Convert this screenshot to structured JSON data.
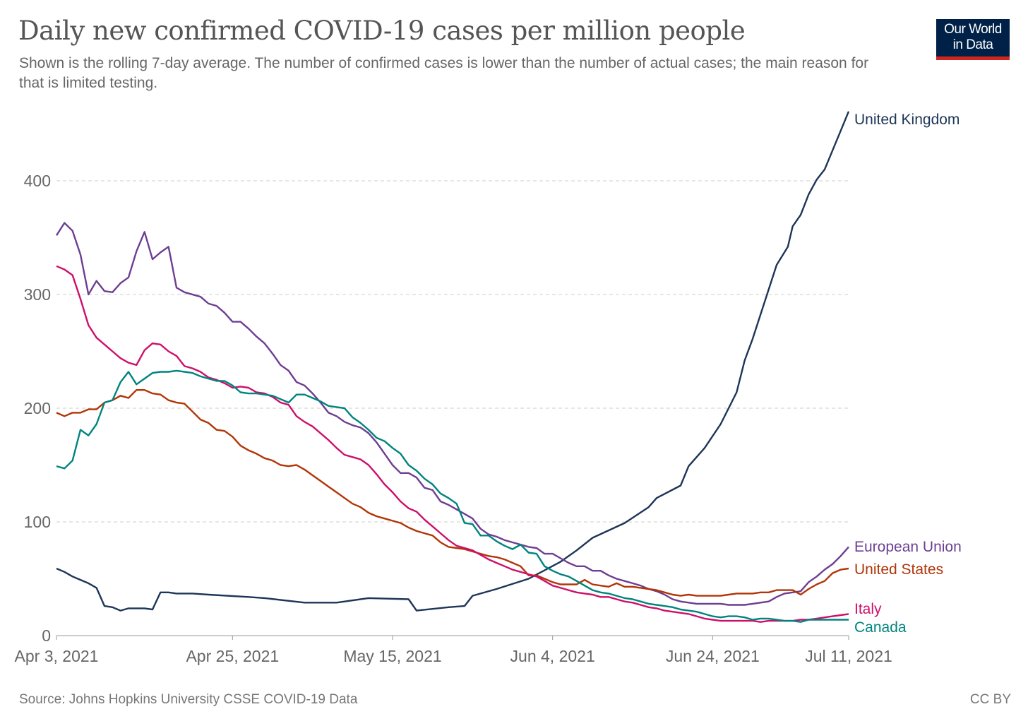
{
  "header": {
    "title": "Daily new confirmed COVID-19 cases per million people",
    "subtitle": "Shown is the rolling 7-day average. The number of confirmed cases is lower than the number of actual cases; the main reason for that is limited testing.",
    "logo_line1": "Our World",
    "logo_line2": "in Data"
  },
  "footer": {
    "source": "Source: Johns Hopkins University CSSE COVID-19 Data",
    "license": "CC BY"
  },
  "chart_data": {
    "type": "line",
    "title": "Daily new confirmed COVID-19 cases per million people",
    "xlabel": "",
    "ylabel": "",
    "x_unit": "days since Apr 3, 2021",
    "xlim": [
      0,
      99
    ],
    "ylim": [
      0,
      460
    ],
    "yticks": [
      0,
      100,
      200,
      300,
      400
    ],
    "xticks": [
      {
        "day": 0,
        "label": "Apr 3, 2021"
      },
      {
        "day": 22,
        "label": "Apr 25, 2021"
      },
      {
        "day": 42,
        "label": "May 15, 2021"
      },
      {
        "day": 62,
        "label": "Jun 4, 2021"
      },
      {
        "day": 82,
        "label": "Jun 24, 2021"
      },
      {
        "day": 99,
        "label": "Jul 11, 2021"
      }
    ],
    "grid": true,
    "legend": "right-inline",
    "series": [
      {
        "name": "United Kingdom",
        "color": "#1d3557",
        "x": [
          0,
          1,
          2,
          3,
          4,
          5,
          6,
          7,
          8,
          9,
          10,
          11,
          12,
          13,
          14,
          15,
          17,
          19,
          24,
          26,
          31,
          35,
          39,
          44,
          45,
          49,
          51,
          52,
          55,
          59,
          63,
          65,
          67,
          71,
          74,
          75,
          78,
          79,
          81,
          83,
          85,
          86,
          87,
          90,
          91.4,
          92,
          93,
          94,
          95,
          96,
          98,
          99
        ],
        "values": [
          59,
          56,
          52,
          49,
          46,
          42,
          26,
          25,
          22,
          24,
          24,
          24,
          23,
          38,
          38,
          37,
          37,
          36,
          34,
          33,
          29,
          29,
          33,
          32,
          22,
          25,
          26,
          35,
          41,
          50,
          65,
          75,
          86,
          99,
          113,
          121,
          132,
          149,
          165,
          186,
          214,
          242,
          261,
          326,
          342,
          360,
          370,
          388,
          401,
          410,
          444,
          461
        ]
      },
      {
        "name": "European Union",
        "color": "#6d3e91",
        "x": [
          0,
          1,
          2,
          3,
          4,
          5,
          6,
          7,
          8,
          9,
          10,
          11,
          12,
          13,
          14,
          15,
          16,
          18,
          19,
          20,
          21,
          22,
          23,
          24,
          25,
          26,
          27,
          28,
          29,
          30,
          31,
          32,
          33,
          34,
          35,
          36,
          37,
          38,
          39,
          40,
          41,
          42,
          43,
          44,
          45,
          46,
          47,
          48,
          49,
          50,
          51,
          52,
          53,
          54,
          55,
          56,
          57,
          58,
          59,
          60,
          61,
          62,
          63,
          64,
          65,
          66,
          67,
          68,
          69,
          70,
          71,
          72,
          73,
          74,
          75,
          76,
          77,
          78,
          79,
          80,
          81,
          82,
          83,
          84,
          85,
          86,
          87,
          88,
          89,
          90,
          91,
          92,
          93,
          94,
          95,
          96,
          97,
          98,
          99
        ],
        "values": [
          352,
          363,
          356,
          335,
          300,
          312,
          303,
          302,
          310,
          315,
          338,
          355,
          331,
          337,
          342,
          306,
          302,
          298,
          292,
          290,
          284,
          276,
          276,
          270,
          263,
          257,
          248,
          238,
          233,
          223,
          220,
          213,
          205,
          196,
          193,
          188,
          185,
          183,
          178,
          170,
          160,
          150,
          143,
          143,
          139,
          130,
          128,
          118,
          115,
          111,
          107,
          103,
          94,
          89,
          87,
          84,
          82,
          80,
          78,
          77,
          72,
          72,
          68,
          64,
          61,
          61,
          57,
          57,
          53,
          50,
          48,
          46,
          44,
          41,
          39,
          36,
          32,
          30,
          29,
          28,
          28,
          28,
          28,
          27,
          27,
          27,
          28,
          29,
          30,
          34,
          37,
          38,
          39,
          47,
          52,
          58,
          63,
          70,
          78
        ]
      },
      {
        "name": "United States",
        "color": "#b13507",
        "x": [
          0,
          1,
          2,
          3,
          4,
          5,
          6,
          7,
          8,
          9,
          10,
          11,
          12,
          13,
          14,
          15,
          16,
          17,
          18,
          19,
          20,
          21,
          22,
          23,
          24,
          25,
          26,
          27,
          28,
          29,
          30,
          31,
          32,
          33,
          34,
          35,
          36,
          37,
          38,
          39,
          40,
          41,
          42,
          43,
          44,
          45,
          46,
          47,
          48,
          49,
          50,
          51,
          52,
          53,
          54,
          55,
          56,
          57,
          58,
          59,
          60,
          61,
          62,
          63,
          64,
          65,
          66,
          67,
          68,
          69,
          70,
          71,
          72,
          73,
          74,
          75,
          76,
          77,
          78,
          79,
          80,
          81,
          82,
          83,
          84,
          85,
          86,
          87,
          88,
          89,
          90,
          91,
          92,
          93,
          94,
          95,
          96,
          97,
          98,
          99
        ],
        "values": [
          196,
          193,
          196,
          196,
          199,
          199,
          205,
          207,
          211,
          209,
          216,
          216,
          213,
          212,
          207,
          205,
          204,
          197,
          190,
          187,
          181,
          180,
          175,
          167,
          163,
          160,
          156,
          154,
          150,
          149,
          150,
          146,
          141,
          136,
          131,
          126,
          121,
          116,
          113,
          108,
          105,
          103,
          101,
          99,
          95,
          92,
          90,
          88,
          82,
          78,
          77,
          76,
          74,
          72,
          70,
          69,
          67,
          64,
          61,
          53,
          53,
          50,
          47,
          45,
          45,
          45,
          49,
          45,
          44,
          43,
          46,
          43,
          43,
          42,
          41,
          40,
          38,
          36,
          35,
          36,
          35,
          35,
          35,
          35,
          36,
          37,
          37,
          37,
          38,
          38,
          40,
          40,
          40,
          36,
          41,
          45,
          48,
          55,
          58,
          59
        ]
      },
      {
        "name": "Italy",
        "color": "#ce0f6a",
        "x": [
          0,
          1,
          2,
          3,
          4,
          5,
          6,
          7,
          8,
          9,
          10,
          11,
          12,
          13,
          14,
          15,
          16,
          17,
          18,
          19,
          20,
          21,
          22,
          23,
          24,
          25,
          26,
          27,
          28,
          29,
          30,
          31,
          32,
          33,
          34,
          35,
          36,
          37,
          38,
          39,
          40,
          41,
          42,
          43,
          44,
          45,
          46,
          47,
          48,
          49,
          50,
          51,
          52,
          53,
          54,
          55,
          56,
          57,
          58,
          59,
          60,
          61,
          62,
          63,
          64,
          65,
          66,
          67,
          68,
          69,
          70,
          71,
          72,
          73,
          74,
          75,
          76,
          77,
          78,
          79,
          80,
          81,
          82,
          83,
          84,
          85,
          86,
          87,
          88,
          89,
          90,
          91,
          92,
          93,
          94,
          95,
          96,
          97,
          98,
          99
        ],
        "values": [
          325,
          322,
          317,
          296,
          273,
          262,
          256,
          250,
          244,
          240,
          238,
          251,
          257,
          256,
          250,
          246,
          237,
          235,
          232,
          227,
          225,
          222,
          218,
          219,
          218,
          214,
          213,
          210,
          205,
          203,
          193,
          188,
          184,
          178,
          172,
          165,
          159,
          157,
          155,
          150,
          142,
          133,
          126,
          118,
          112,
          109,
          102,
          96,
          90,
          84,
          79,
          77,
          75,
          71,
          67,
          64,
          61,
          58,
          56,
          54,
          52,
          48,
          44,
          42,
          40,
          38,
          37,
          36,
          34,
          34,
          32,
          30,
          29,
          27,
          25,
          24,
          22,
          21,
          20,
          19,
          17,
          15,
          14,
          13,
          13,
          13,
          13,
          13,
          12,
          13,
          13,
          13,
          13,
          14,
          14,
          15,
          16,
          17,
          18,
          19
        ]
      },
      {
        "name": "Canada",
        "color": "#00847e",
        "x": [
          0,
          1,
          2,
          3,
          4,
          5,
          6,
          7,
          8,
          9,
          10,
          11,
          12,
          13,
          14,
          15,
          16,
          17,
          18,
          19,
          20,
          21,
          22,
          23,
          24,
          25,
          26,
          27,
          28,
          29,
          30,
          31,
          32,
          33,
          34,
          35,
          36,
          37,
          38,
          39,
          40,
          41,
          42,
          43,
          44,
          45,
          46,
          47,
          48,
          49,
          50,
          51,
          52,
          53,
          54,
          55,
          56,
          57,
          58,
          59,
          60,
          61,
          62,
          63,
          64,
          65,
          66,
          67,
          68,
          69,
          70,
          71,
          72,
          73,
          74,
          75,
          76,
          77,
          78,
          79,
          80,
          81,
          82,
          83,
          84,
          85,
          86,
          87,
          88,
          89,
          90,
          91,
          92,
          93,
          94,
          95,
          96,
          97,
          98,
          99
        ],
        "values": [
          149,
          147,
          154,
          181,
          176,
          186,
          205,
          207,
          223,
          232,
          221,
          226,
          231,
          232,
          232,
          233,
          232,
          231,
          228,
          226,
          224,
          224,
          220,
          214,
          213,
          213,
          212,
          211,
          208,
          205,
          212,
          212,
          209,
          206,
          202,
          201,
          200,
          192,
          187,
          181,
          174,
          171,
          165,
          160,
          150,
          145,
          138,
          133,
          125,
          121,
          116,
          99,
          98,
          88,
          88,
          83,
          79,
          76,
          80,
          73,
          72,
          61,
          57,
          54,
          52,
          48,
          44,
          40,
          38,
          37,
          35,
          33,
          32,
          30,
          28,
          27,
          26,
          25,
          23,
          22,
          21,
          19,
          17,
          16,
          17,
          17,
          16,
          14,
          15,
          15,
          14,
          13,
          13,
          12,
          14,
          14,
          14,
          14,
          14,
          14
        ]
      }
    ],
    "labels": {
      "uk": "United Kingdom",
      "eu": "European Union",
      "us": "United States",
      "it": "Italy",
      "ca": "Canada"
    }
  }
}
